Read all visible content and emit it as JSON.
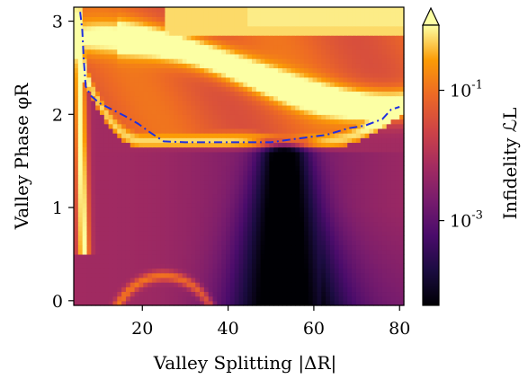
{
  "chart_data": {
    "type": "heatmap",
    "xlabel": "Valley Splitting |ΔR|",
    "ylabel": "Valley Phase φR",
    "xlim": [
      4,
      81
    ],
    "ylim": [
      -0.05,
      3.15
    ],
    "x_ticks": [
      20,
      40,
      60,
      80
    ],
    "x_tick_labels": [
      "20",
      "40",
      "60",
      "80"
    ],
    "y_ticks": [
      0,
      1,
      2,
      3
    ],
    "y_tick_labels": [
      "0",
      "1",
      "2",
      "3"
    ],
    "colorbar": {
      "label": "Infidelity ℒL",
      "scale": "log",
      "range": [
        5e-05,
        1.0
      ],
      "ticks": [
        0.001,
        0.1
      ],
      "tick_labels": [
        "10-3",
        "10-1"
      ],
      "extend": "max",
      "colormap": "inferno"
    },
    "contour": {
      "style": "dash-dot",
      "color": "#1f2fe0",
      "points": [
        [
          5.5,
          3.1
        ],
        [
          6.0,
          2.9
        ],
        [
          6.3,
          2.6
        ],
        [
          6.8,
          2.3
        ],
        [
          8.0,
          2.2
        ],
        [
          10,
          2.12
        ],
        [
          13,
          2.05
        ],
        [
          16,
          1.98
        ],
        [
          19,
          1.9
        ],
        [
          22,
          1.8
        ],
        [
          25,
          1.71
        ],
        [
          30,
          1.7
        ],
        [
          35,
          1.7
        ],
        [
          40,
          1.7
        ],
        [
          45,
          1.7
        ],
        [
          50,
          1.7
        ],
        [
          53,
          1.72
        ],
        [
          58,
          1.75
        ],
        [
          63,
          1.78
        ],
        [
          68,
          1.85
        ],
        [
          72,
          1.88
        ],
        [
          76,
          1.95
        ],
        [
          78,
          2.05
        ],
        [
          80,
          2.08
        ]
      ]
    }
  }
}
